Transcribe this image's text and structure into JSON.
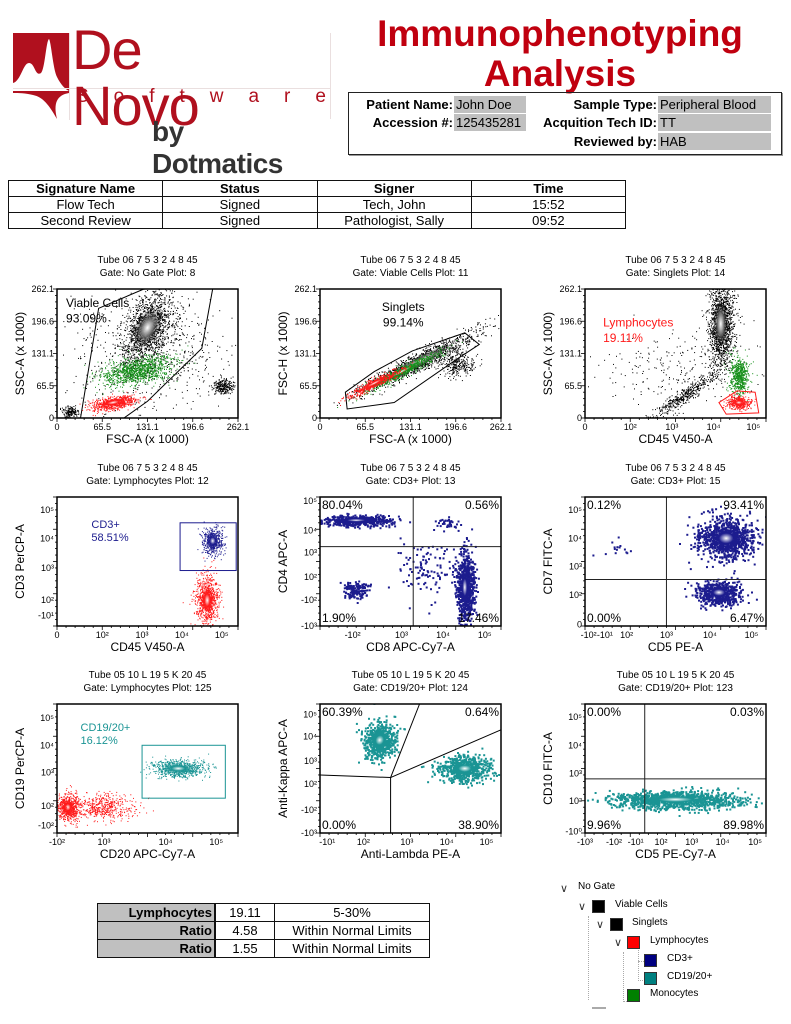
{
  "logo": {
    "brand": "De Novo",
    "sub": "Software",
    "by": "by Dotmatics",
    "color": "#b0101e"
  },
  "title": {
    "line1": "Immunophenotyping",
    "line2": "Analysis",
    "color": "#c0000f"
  },
  "patient": {
    "patient_name_label": "Patient Name:",
    "patient_name": "John Doe",
    "accession_label": "Accession #:",
    "accession": "125435281",
    "sample_type_label": "Sample Type:",
    "sample_type": "Peripheral Blood",
    "tech_id_label": "Acquition Tech ID:",
    "tech_id": "TT",
    "reviewed_label": "Reviewed by:",
    "reviewed": "HAB"
  },
  "signatures": {
    "headers": [
      "Signature Name",
      "Status",
      "Signer",
      "Time"
    ],
    "rows": [
      [
        "Flow Tech",
        "Signed",
        "Tech, John",
        "15:52"
      ],
      [
        "Second Review",
        "Signed",
        "Pathologist, Sally",
        "09:52"
      ]
    ]
  },
  "colors": {
    "red": "#ff1a1a",
    "green": "#16901a",
    "navy": "#1c1c8e",
    "teal": "#1a9494",
    "black": "#000000"
  },
  "plots": [
    {
      "tube": "Tube 06 7 5 3 2 4 8 45",
      "gate": "Gate: No Gate  Plot: 8",
      "x_label": "FSC-A (x 1000)",
      "y_label": "SSC-A (x 1000)",
      "x_ticks": [
        "0",
        "65.5",
        "131.1",
        "196.6",
        "262.1"
      ],
      "y_ticks": [
        "0",
        "65.5",
        "131.1",
        "196.6",
        "262.1"
      ],
      "labels": [
        {
          "text": "Viable Cells",
          "color": "#000000"
        },
        {
          "text": "93.09%",
          "color": "#000000"
        }
      ],
      "quadrants": []
    },
    {
      "tube": "Tube 06 7 5 3 2 4 8 45",
      "gate": "Gate: Viable Cells  Plot: 11",
      "x_label": "FSC-A (x 1000)",
      "y_label": "FSC-H (x 1000)",
      "x_ticks": [
        "0",
        "65.5",
        "131.1",
        "196.6",
        "262.1"
      ],
      "y_ticks": [
        "0",
        "65.5",
        "131.1",
        "196.6",
        "262.1"
      ],
      "labels": [
        {
          "text": "Singlets",
          "color": "#000000"
        },
        {
          "text": "99.14%",
          "color": "#000000"
        }
      ],
      "quadrants": []
    },
    {
      "tube": "Tube 06 7 5 3 2 4 8 45",
      "gate": "Gate: Singlets  Plot: 14",
      "x_label": "CD45 V450-A",
      "y_label": "SSC-A (x 1000)",
      "x_ticks": [
        "0",
        "10²",
        "10³",
        "10⁴",
        "10⁵"
      ],
      "y_ticks": [
        "0",
        "65.5",
        "131.1",
        "196.6",
        "262.1"
      ],
      "labels": [
        {
          "text": "Lymphocytes",
          "color": "#ff1a1a"
        },
        {
          "text": "19.11%",
          "color": "#ff1a1a"
        }
      ],
      "quadrants": []
    },
    {
      "tube": "Tube 06 7 5 3 2 4 8 45",
      "gate": "Gate: Lymphocytes  Plot: 12",
      "x_label": "CD45 V450-A",
      "y_label": "CD3 PerCP-A",
      "x_ticks": [
        "0",
        "10²",
        "10³",
        "10⁴",
        "10⁵"
      ],
      "y_ticks": [
        "-10¹",
        "10²",
        "10³",
        "10⁴",
        "10⁵"
      ],
      "labels": [
        {
          "text": "CD3+",
          "color": "#1c1c8e"
        },
        {
          "text": "58.51%",
          "color": "#1c1c8e"
        }
      ],
      "quadrants": []
    },
    {
      "tube": "Tube 06 7 5 3 2 4 8 45",
      "gate": "Gate: CD3+  Plot: 13",
      "x_label": "CD8 APC-Cy7-A",
      "y_label": "CD4 APC-A",
      "x_ticks": [
        "-10²",
        "10³",
        "10⁴",
        "10⁵"
      ],
      "y_ticks": [
        "-10³",
        "-10²",
        "10²",
        "10³",
        "10⁴",
        "10⁵"
      ],
      "labels": [],
      "quadrants": [
        "80.04%",
        "0.56%",
        "1.90%",
        "17.46%"
      ]
    },
    {
      "tube": "Tube 06 7 5 3 2 4 8 45",
      "gate": "Gate: CD3+  Plot: 15",
      "x_label": "CD5 PE-A",
      "y_label": "CD7 FITC-A",
      "x_ticks": [
        "-10²",
        "-10¹",
        "10²",
        "10³",
        "10⁴",
        "10⁵"
      ],
      "y_ticks": [
        "0",
        "10²",
        "10³",
        "10⁴",
        "10⁵"
      ],
      "labels": [],
      "quadrants": [
        "0.12%",
        "93.41%",
        "0.00%",
        "6.47%"
      ]
    },
    {
      "tube": "Tube 05 10 L 19 5 K 20 45",
      "gate": "Gate: Lymphocytes  Plot: 125",
      "x_label": "CD20 APC-Cy7-A",
      "y_label": "CD19 PerCP-A",
      "x_ticks": [
        "-10²",
        "10³",
        "10⁴",
        "10⁵"
      ],
      "y_ticks": [
        "-10²",
        "10²",
        "10³",
        "10⁴",
        "10⁵"
      ],
      "labels": [
        {
          "text": "CD19/20+",
          "color": "#1a9494"
        },
        {
          "text": "16.12%",
          "color": "#1a9494"
        }
      ],
      "quadrants": []
    },
    {
      "tube": "Tube 05 10 L 19 5 K 20 45",
      "gate": "Gate: CD19/20+  Plot: 124",
      "x_label": "Anti-Lambda PE-A",
      "y_label": "Anti-Kappa APC-A",
      "x_ticks": [
        "-10¹",
        "10²",
        "10³",
        "10⁴",
        "10⁵"
      ],
      "y_ticks": [
        "-10³",
        "-10²",
        "10²",
        "10³",
        "10⁴",
        "10⁵"
      ],
      "labels": [],
      "quadrants": [
        "60.39%",
        "0.64%",
        "0.00%",
        "38.90%"
      ]
    },
    {
      "tube": "Tube 05 10 L 19 5 K 20 45",
      "gate": "Gate: CD19/20+  Plot: 123",
      "x_label": "CD5 PE-Cy7-A",
      "y_label": "CD10 FITC-A",
      "x_ticks": [
        "-10³",
        "-10²",
        "-10¹",
        "10²",
        "10³",
        "10⁴",
        "10⁵"
      ],
      "y_ticks": [
        "-10⁰",
        "10²",
        "10³",
        "10⁴",
        "10⁵"
      ],
      "labels": [],
      "quadrants": [
        "0.00%",
        "0.03%",
        "9.96%",
        "89.98%"
      ]
    }
  ],
  "summary": {
    "rows": [
      [
        "Lymphocytes",
        "19.11",
        "5-30%"
      ],
      [
        "Ratio",
        "4.58",
        "Within Normal Limits"
      ],
      [
        "Ratio",
        "1.55",
        "Within Normal Limits"
      ]
    ]
  },
  "gate_tree": {
    "nodes": [
      {
        "label": "No Gate",
        "color": "",
        "expanded": true
      },
      {
        "label": "Viable Cells",
        "color": "#000000",
        "expanded": true
      },
      {
        "label": "Singlets",
        "color": "#000000",
        "expanded": true
      },
      {
        "label": "Lymphocytes",
        "color": "#ff0000",
        "expanded": true
      },
      {
        "label": "CD3+",
        "color": "#000080",
        "expanded": false
      },
      {
        "label": "CD19/20+",
        "color": "#008080",
        "expanded": false
      },
      {
        "label": "Monocytes",
        "color": "#008000",
        "expanded": false
      }
    ]
  }
}
